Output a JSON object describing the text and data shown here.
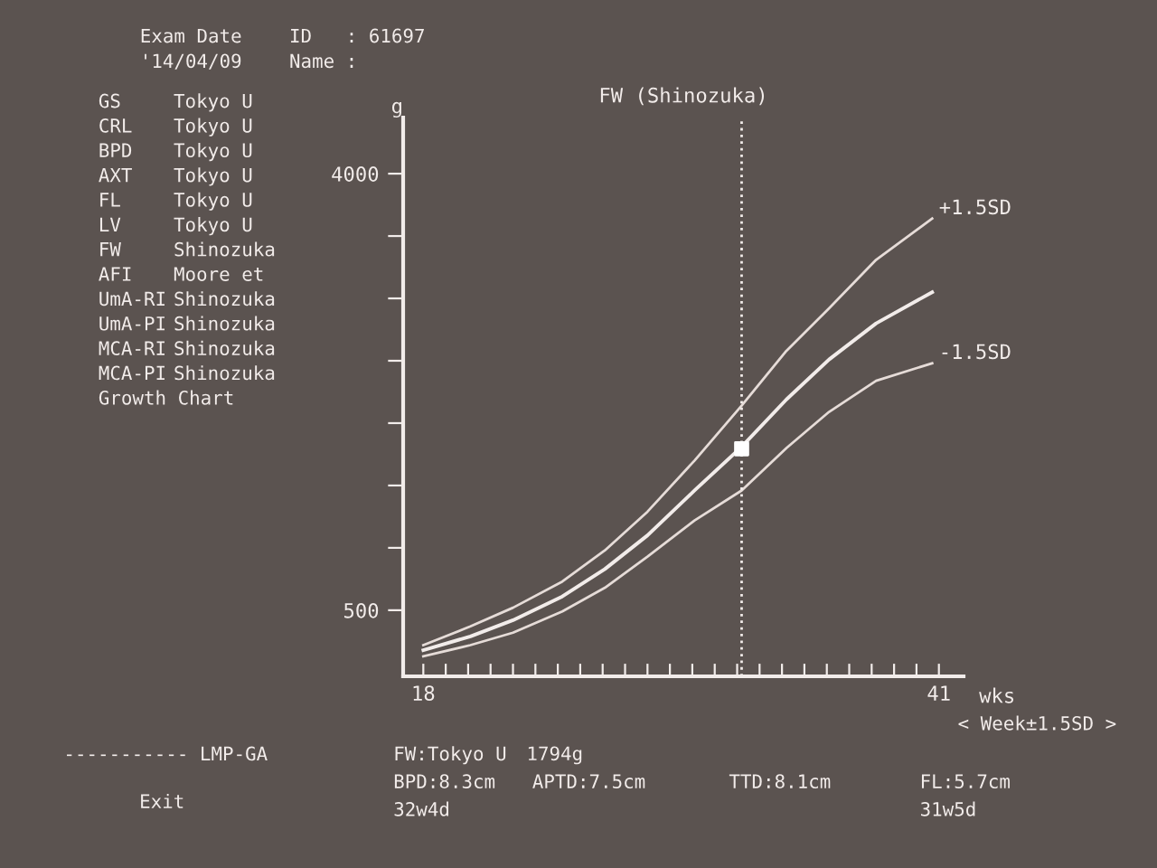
{
  "chart_data": {
    "type": "line",
    "title": "FW (Shinozuka)",
    "ylabel": "g",
    "xlabel": "wks",
    "x": [
      18,
      20.1,
      22,
      24.2,
      26.1,
      28,
      30.1,
      32.2,
      34.2,
      36.1,
      38.2,
      40.7
    ],
    "series": [
      {
        "name": "+1.5SD",
        "color": "#e6dcd8",
        "values": [
          220,
          370,
          520,
          730,
          980,
          1290,
          1700,
          2140,
          2580,
          2920,
          3310,
          3640
        ]
      },
      {
        "color": "#f2ecea",
        "values": [
          180,
          290,
          420,
          610,
          830,
          1100,
          1460,
          1810,
          2190,
          2510,
          2800,
          3050
        ]
      },
      {
        "name": "-1.5SD",
        "color": "#e6dcd8",
        "values": [
          130,
          220,
          320,
          490,
          680,
          930,
          1220,
          1460,
          1800,
          2090,
          2340,
          2480
        ]
      },
      {
        "type": "scatter",
        "marker": "square",
        "color": "#ffffff",
        "x": [
          32.2
        ],
        "values": [
          1794
        ]
      }
    ],
    "xlim": [
      17.1,
      42.1
    ],
    "ylim": [
      -30,
      4450
    ],
    "xticks": [
      18,
      {
        "value": 19,
        "label": null
      },
      {
        "value": 20,
        "label": null
      },
      {
        "value": 21,
        "label": null
      },
      {
        "value": 22,
        "label": null
      },
      {
        "value": 23,
        "label": null
      },
      {
        "value": 24,
        "label": null
      },
      {
        "value": 25,
        "label": null
      },
      {
        "value": 26,
        "label": null
      },
      {
        "value": 27,
        "label": null
      },
      {
        "value": 28,
        "label": null
      },
      {
        "value": 29,
        "label": null
      },
      {
        "value": 30,
        "label": null
      },
      {
        "value": 31,
        "label": null
      },
      {
        "value": 32,
        "label": null
      },
      {
        "value": 33,
        "label": null
      },
      {
        "value": 34,
        "label": null
      },
      {
        "value": 35,
        "label": null
      },
      {
        "value": 36,
        "label": null
      },
      {
        "value": 37,
        "label": null
      },
      {
        "value": 38,
        "label": null
      },
      {
        "value": 39,
        "label": null
      },
      {
        "value": 40,
        "label": null
      },
      41
    ],
    "yticks": [
      500,
      {
        "value": 1000,
        "label": null
      },
      {
        "value": 1500,
        "label": null
      },
      {
        "value": 2000,
        "label": null
      },
      {
        "value": 2500,
        "label": null
      },
      {
        "value": 3000,
        "label": null
      },
      {
        "value": 3500,
        "label": null
      },
      4000
    ],
    "ref_lines": [
      {
        "axis": "x",
        "value": 32.2,
        "line_style": "dotted",
        "color": "#f2ecea"
      }
    ],
    "grid": false,
    "legend": false,
    "annotations": [
      "Exam Date",
      "'14/04/09",
      "ID   : 61697",
      "Name :",
      "GS",
      "Tokyo U",
      "CRL",
      "Tokyo U",
      "BPD",
      "Tokyo U",
      "AXT",
      "Tokyo U",
      "FL",
      "Tokyo U",
      "LV",
      "Tokyo U",
      "FW",
      "Shinozuka",
      "AFI",
      "Moore et",
      "UmA-RI",
      "Shinozuka",
      "UmA-PI",
      "Shinozuka",
      "MCA-RI",
      "Shinozuka",
      "MCA-PI",
      "Shinozuka",
      "Growth Chart",
      "----------- LMP-GA",
      "Exit",
      "FW:Tokyo U",
      "1794g",
      "BPD:8.3cm",
      "APTD:7.5cm",
      "TTD:8.1cm",
      "FL:5.7cm",
      "32w4d",
      "31w5d",
      "< Week±1.5SD >"
    ]
  }
}
